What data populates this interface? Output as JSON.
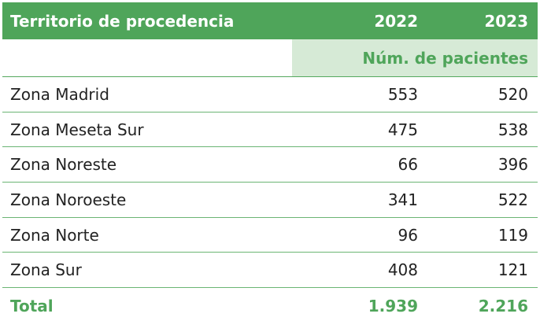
{
  "header": {
    "territory": "Territorio de procedencia",
    "year1": "2022",
    "year2": "2023"
  },
  "units": "Núm. de pacientes",
  "rows": [
    {
      "zone": "Zona Madrid",
      "v2022": "553",
      "v2023": "520"
    },
    {
      "zone": "Zona Meseta Sur",
      "v2022": "475",
      "v2023": "538"
    },
    {
      "zone": "Zona Noreste",
      "v2022": "66",
      "v2023": "396"
    },
    {
      "zone": "Zona Noroeste",
      "v2022": "341",
      "v2023": "522"
    },
    {
      "zone": "Zona Norte",
      "v2022": "96",
      "v2023": "119"
    },
    {
      "zone": "Zona Sur",
      "v2022": "408",
      "v2023": "121"
    }
  ],
  "total": {
    "label": "Total",
    "v2022": "1.939",
    "v2023": "2.216"
  },
  "colors": {
    "accent": "#4fa55a",
    "units_bg": "#d6ead6"
  }
}
